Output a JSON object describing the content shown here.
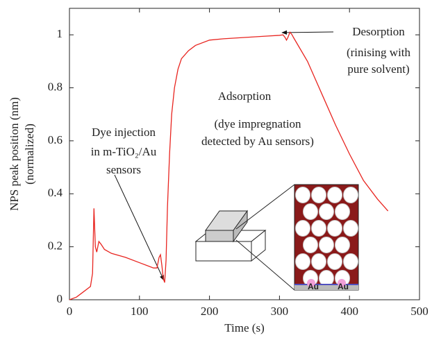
{
  "chart_data": {
    "type": "line",
    "x_label": "Time (s)",
    "y_label": [
      "NPS peak position (nm)",
      "(normalized)"
    ],
    "xlim": [
      0,
      500
    ],
    "xticks": [
      0,
      100,
      200,
      300,
      400,
      500
    ],
    "ylim": [
      0,
      1.1
    ],
    "yticks": [
      0,
      0.2,
      0.4,
      0.6,
      0.8,
      1
    ],
    "series": [
      {
        "color": "#e8241f",
        "x": [
          0,
          10,
          20,
          30,
          33,
          35,
          37,
          39,
          42,
          45,
          50,
          60,
          80,
          100,
          120,
          125,
          128,
          130,
          132,
          134,
          136,
          138,
          140,
          143,
          146,
          150,
          155,
          160,
          170,
          180,
          200,
          220,
          250,
          280,
          300,
          305,
          308,
          310,
          312,
          315,
          318,
          320,
          340,
          360,
          380,
          400,
          420,
          440,
          455
        ],
        "values": [
          0,
          0.01,
          0.03,
          0.05,
          0.1,
          0.345,
          0.2,
          0.18,
          0.22,
          0.21,
          0.19,
          0.175,
          0.16,
          0.14,
          0.12,
          0.12,
          0.16,
          0.17,
          0.13,
          0.08,
          0.065,
          0.15,
          0.35,
          0.55,
          0.7,
          0.8,
          0.87,
          0.91,
          0.94,
          0.96,
          0.98,
          0.985,
          0.99,
          0.995,
          0.998,
          1.0,
          0.99,
          0.98,
          0.99,
          1.01,
          1.0,
          0.99,
          0.9,
          0.78,
          0.66,
          0.55,
          0.45,
          0.38,
          0.335
        ]
      }
    ],
    "annotations": [
      "Desorption",
      "(rinising with",
      "pure solvent)",
      "Adsorption",
      "(dye impregnation",
      "detected by Au sensors)",
      "Dye injection",
      "in m-TiO₂/Au",
      "sensors"
    ],
    "inset_labels": [
      "Au",
      "Au"
    ]
  }
}
